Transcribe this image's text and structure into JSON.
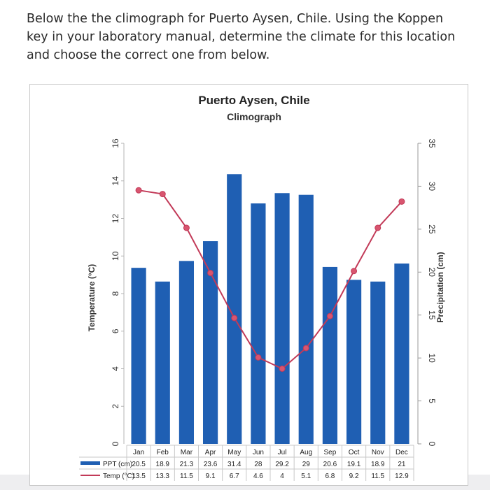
{
  "question": {
    "text": "Below the the climograph for Puerto Aysen, Chile. Using the Koppen key in your laboratory manual, determine the climate for this location and choose the correct one from below."
  },
  "colors": {
    "bar": "#1f5fb3",
    "temp_line": "#c23a58",
    "temp_marker": "#d8556f",
    "legend_bar": "#1f5fb3"
  },
  "chart_data": {
    "type": "bar",
    "title": "Puerto Aysen, Chile",
    "subtitle": "Climograph",
    "categories": [
      "Jan",
      "Feb",
      "Mar",
      "Apr",
      "May",
      "Jun",
      "Jul",
      "Aug",
      "Sep",
      "Oct",
      "Nov",
      "Dec"
    ],
    "series": [
      {
        "name": "PPT (cm)",
        "kind": "bar",
        "axis": "right",
        "values": [
          20.5,
          18.9,
          21.3,
          23.6,
          31.4,
          28,
          29.2,
          29,
          20.6,
          19.1,
          18.9,
          21
        ]
      },
      {
        "name": "Temp (°C)",
        "kind": "line",
        "axis": "left",
        "values": [
          13.5,
          13.3,
          11.5,
          9.1,
          6.7,
          4.6,
          4,
          5.1,
          6.8,
          9.2,
          11.5,
          12.9
        ]
      }
    ],
    "ylabel": "Temperature (°C)",
    "ylabel_right": "Precipitation (cm)",
    "ylim_left": [
      0,
      16
    ],
    "ylim_right": [
      0,
      35
    ],
    "yticks_left": [
      "0",
      "2",
      "4",
      "6",
      "8",
      "10",
      "12",
      "14",
      "16"
    ],
    "yticks_right": [
      "0",
      "5",
      "10",
      "15",
      "20",
      "25",
      "30",
      "35"
    ],
    "table": {
      "row_labels": [
        "PPT (cm)",
        "Temp (°C)"
      ],
      "temp_row_visible": [
        "13.5",
        "13.3",
        "11.5",
        "9.1",
        "6.7",
        "4.6",
        "4",
        "5.1",
        "6.8",
        "9.2",
        "11.5",
        "12.9"
      ]
    }
  }
}
